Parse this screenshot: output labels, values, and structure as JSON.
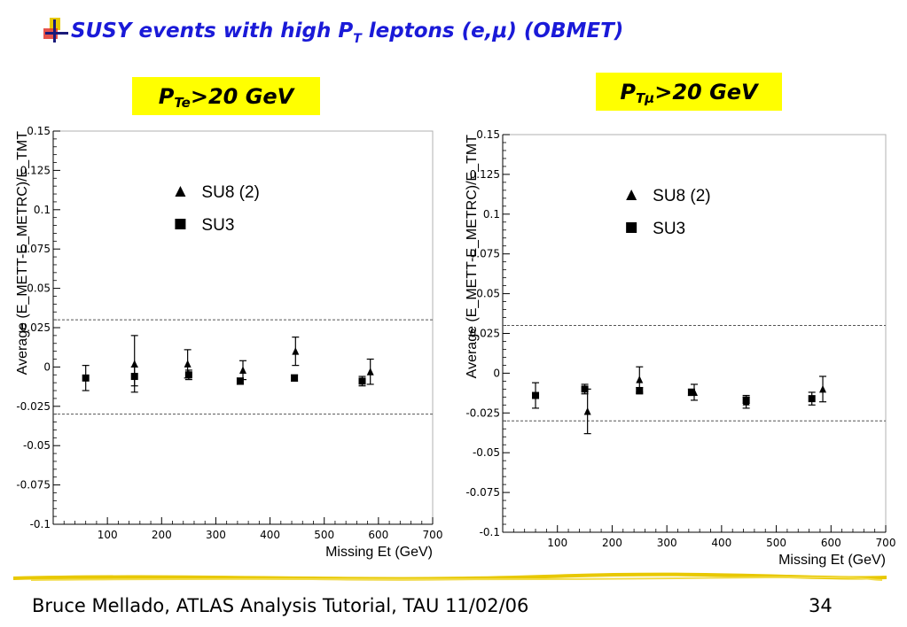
{
  "slide": {
    "title_main": "SUSY events with high P",
    "title_sub": "T",
    "title_rest": " leptons (e,μ) (OBMET)",
    "footer": "Bruce Mellado, ATLAS Analysis Tutorial, TAU 11/02/06",
    "page_number": "34",
    "colors": {
      "title": "#1a1ad8",
      "label_box": "#ffff00",
      "rule": "#e8c800"
    }
  },
  "labels": {
    "left": {
      "main": "P",
      "sub": "Te",
      "rest": ">20 GeV"
    },
    "right": {
      "main": "P",
      "sub": "Tμ",
      "rest": ">20 GeV"
    }
  },
  "chart_data": [
    {
      "type": "scatter",
      "xlabel": "Missing Et (GeV)",
      "ylabel": "Average (E_METT-E_METRC)/E_TMT",
      "xlim": [
        0,
        700
      ],
      "ylim": [
        -0.1,
        0.15
      ],
      "xticks": [
        100,
        200,
        300,
        400,
        500,
        600,
        700
      ],
      "yticks": [
        -0.1,
        -0.075,
        -0.05,
        -0.025,
        0,
        0.025,
        0.05,
        0.075,
        0.1,
        0.125,
        0.15
      ],
      "ytick_labels": [
        "-0.1",
        "-0.075",
        "-0.05",
        "-0.025",
        "0",
        "0.025",
        "0.05",
        "0.075",
        "0.1",
        "0.125",
        "0.15"
      ],
      "reference_lines": [
        0.03,
        -0.03
      ],
      "legend": {
        "placement": "top-center"
      },
      "series": [
        {
          "name": "SU8 (2)",
          "marker": "triangle",
          "points": [
            {
              "x": 150,
              "y": 0.002,
              "err": 0.018
            },
            {
              "x": 248,
              "y": 0.002,
              "err": 0.009
            },
            {
              "x": 350,
              "y": -0.002,
              "err": 0.006
            },
            {
              "x": 447,
              "y": 0.01,
              "err": 0.009
            },
            {
              "x": 585,
              "y": -0.003,
              "err": 0.008
            }
          ]
        },
        {
          "name": "SU3",
          "marker": "square",
          "points": [
            {
              "x": 60,
              "y": -0.007,
              "err": 0.008
            },
            {
              "x": 150,
              "y": -0.006,
              "err": 0.006
            },
            {
              "x": 250,
              "y": -0.005,
              "err": 0.003
            },
            {
              "x": 345,
              "y": -0.009,
              "err": 0.002
            },
            {
              "x": 445,
              "y": -0.007,
              "err": 0.002
            },
            {
              "x": 570,
              "y": -0.009,
              "err": 0.003
            }
          ]
        }
      ]
    },
    {
      "type": "scatter",
      "xlabel": "Missing Et (GeV)",
      "ylabel": "Average (E_METT-E_METRC)/E_TMT",
      "xlim": [
        0,
        700
      ],
      "ylim": [
        -0.1,
        0.15
      ],
      "xticks": [
        100,
        200,
        300,
        400,
        500,
        600,
        700
      ],
      "yticks": [
        -0.1,
        -0.075,
        -0.05,
        -0.025,
        0,
        0.025,
        0.05,
        0.075,
        0.1,
        0.125,
        0.15
      ],
      "ytick_labels": [
        "-0.1",
        "-0.075",
        "-0.05",
        "-0.025",
        "0",
        "0.025",
        "0.05",
        "0.075",
        "0.1",
        "0.125",
        "0.15"
      ],
      "reference_lines": [
        0.03,
        -0.03
      ],
      "legend": {
        "placement": "top-center"
      },
      "series": [
        {
          "name": "SU8 (2)",
          "marker": "triangle",
          "points": [
            {
              "x": 155,
              "y": -0.024,
              "err": 0.014
            },
            {
              "x": 250,
              "y": -0.004,
              "err": 0.008
            },
            {
              "x": 350,
              "y": -0.012,
              "err": 0.005
            },
            {
              "x": 445,
              "y": -0.018,
              "err": 0.004
            },
            {
              "x": 585,
              "y": -0.01,
              "err": 0.008
            }
          ]
        },
        {
          "name": "SU3",
          "marker": "square",
          "points": [
            {
              "x": 60,
              "y": -0.014,
              "err": 0.008
            },
            {
              "x": 150,
              "y": -0.01,
              "err": 0.003
            },
            {
              "x": 250,
              "y": -0.011,
              "err": 0.002
            },
            {
              "x": 345,
              "y": -0.012,
              "err": 0.002
            },
            {
              "x": 445,
              "y": -0.017,
              "err": 0.002
            },
            {
              "x": 565,
              "y": -0.016,
              "err": 0.004
            }
          ]
        }
      ]
    }
  ]
}
